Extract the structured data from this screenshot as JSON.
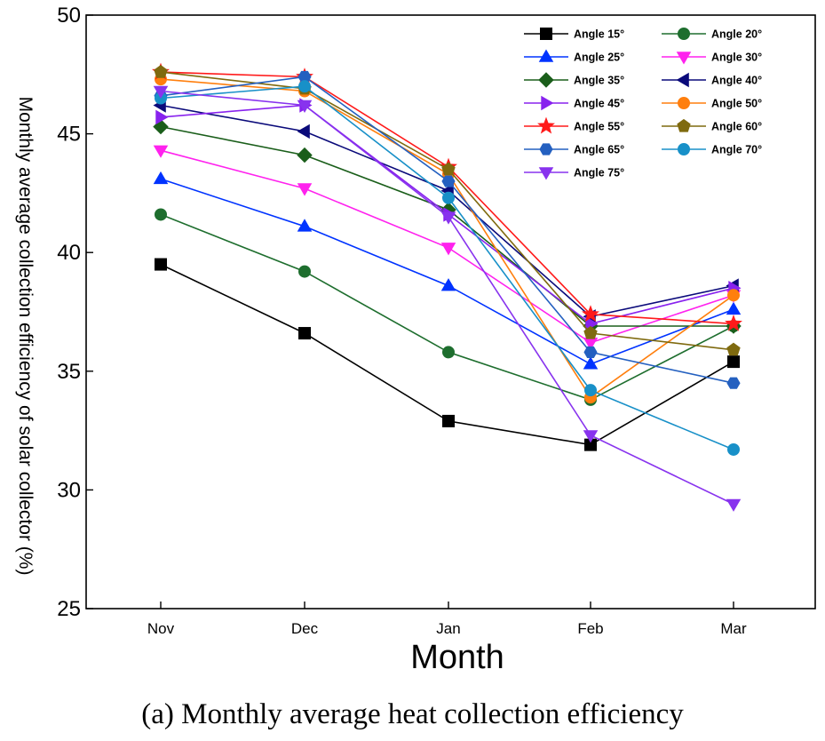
{
  "chart_data": {
    "type": "line",
    "title": "",
    "xlabel": "Month",
    "ylabel": "Monthly average collection efficiency of solar collector (%)",
    "caption": "(a) Monthly average heat collection efficiency",
    "categories": [
      "Nov",
      "Dec",
      "Jan",
      "Feb",
      "Mar"
    ],
    "ylim": [
      25,
      50
    ],
    "yticks": [
      "25",
      "30",
      "35",
      "40",
      "45",
      "50"
    ],
    "grid": false,
    "legend_position": "top-right",
    "series": [
      {
        "name": "Angle 15°",
        "color": "#000000",
        "marker": "square",
        "values": [
          39.5,
          36.6,
          32.9,
          31.9,
          35.4
        ]
      },
      {
        "name": "Angle 20°",
        "color": "#1e6e2e",
        "marker": "circle",
        "values": [
          41.6,
          39.2,
          35.8,
          33.8,
          36.9
        ]
      },
      {
        "name": "Angle 25°",
        "color": "#0033ff",
        "marker": "triangle-up",
        "values": [
          43.1,
          41.1,
          38.6,
          35.3,
          37.6
        ]
      },
      {
        "name": "Angle 30°",
        "color": "#ff22ee",
        "marker": "triangle-down",
        "values": [
          44.3,
          42.7,
          40.2,
          36.2,
          38.2
        ]
      },
      {
        "name": "Angle 35°",
        "color": "#1a5e1a",
        "marker": "diamond",
        "values": [
          45.3,
          44.1,
          41.8,
          36.9,
          36.9
        ]
      },
      {
        "name": "Angle 40°",
        "color": "#0a0a7a",
        "marker": "triangle-left",
        "values": [
          46.2,
          45.1,
          42.6,
          37.3,
          38.6
        ]
      },
      {
        "name": "Angle 45°",
        "color": "#8822ee",
        "marker": "triangle-right",
        "values": [
          45.7,
          46.2,
          41.6,
          37.0,
          38.5
        ]
      },
      {
        "name": "Angle 50°",
        "color": "#ff7f0e",
        "marker": "circle",
        "values": [
          47.3,
          46.8,
          43.3,
          33.9,
          38.2
        ]
      },
      {
        "name": "Angle 55°",
        "color": "#ff1a1a",
        "marker": "star",
        "values": [
          47.6,
          47.4,
          43.6,
          37.4,
          37.0
        ]
      },
      {
        "name": "Angle 60°",
        "color": "#7f6a0f",
        "marker": "pentagon",
        "values": [
          47.6,
          46.9,
          43.5,
          36.6,
          35.9
        ]
      },
      {
        "name": "Angle 65°",
        "color": "#2460c0",
        "marker": "hexagon",
        "values": [
          46.6,
          47.4,
          43.0,
          35.8,
          34.5
        ]
      },
      {
        "name": "Angle 70°",
        "color": "#1890c8",
        "marker": "circle",
        "values": [
          46.5,
          47.0,
          42.3,
          34.2,
          31.7
        ]
      },
      {
        "name": "Angle 75°",
        "color": "#8833ee",
        "marker": "triangle-down",
        "values": [
          46.8,
          46.2,
          41.5,
          32.3,
          29.4
        ]
      }
    ]
  }
}
